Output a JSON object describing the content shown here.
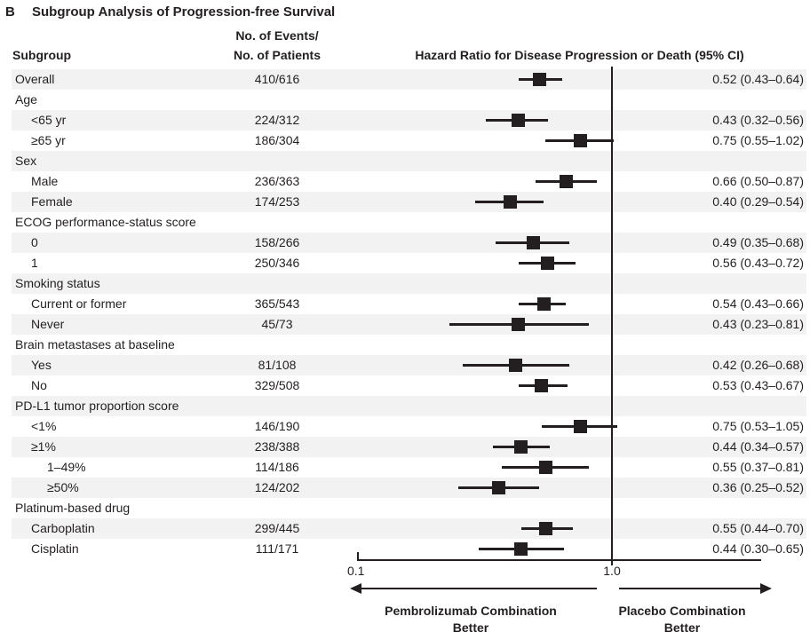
{
  "panel_label": "B",
  "title": "Subgroup Analysis of Progression-free Survival",
  "columns": {
    "subgroup": "Subgroup",
    "events_line1": "No. of Events/",
    "events_line2": "No. of Patients",
    "hr": "Hazard Ratio for Disease Progression or Death (95% CI)"
  },
  "axis": {
    "tick_left": "0.1",
    "tick_right": "1.0",
    "left_caption_line1": "Pembrolizumab Combination",
    "left_caption_line2": "Better",
    "right_caption_line1": "Placebo Combination",
    "right_caption_line2": "Better"
  },
  "colors": {
    "ink": "#231f20",
    "band": "#f2f2f2"
  },
  "chart_data": {
    "type": "forest",
    "title": "Subgroup Analysis of Progression-free Survival",
    "x_axis": {
      "scale": "log10",
      "tick_values": [
        0.1,
        1.0
      ],
      "reference_line": 1.0,
      "left_better_label": "Pembrolizumab Combination Better",
      "right_better_label": "Placebo Combination Better"
    },
    "rows": [
      {
        "label": "Overall",
        "indent": 0,
        "events": "410/616",
        "hr": 0.52,
        "lo": 0.43,
        "hi": 0.64,
        "hr_text": "0.52 (0.43–0.64)"
      },
      {
        "label": "Age",
        "indent": 0
      },
      {
        "label": "<65 yr",
        "indent": 1,
        "events": "224/312",
        "hr": 0.43,
        "lo": 0.32,
        "hi": 0.56,
        "hr_text": "0.43 (0.32–0.56)"
      },
      {
        "label": "≥65 yr",
        "indent": 1,
        "events": "186/304",
        "hr": 0.75,
        "lo": 0.55,
        "hi": 1.02,
        "hr_text": "0.75 (0.55–1.02)"
      },
      {
        "label": "Sex",
        "indent": 0
      },
      {
        "label": "Male",
        "indent": 1,
        "events": "236/363",
        "hr": 0.66,
        "lo": 0.5,
        "hi": 0.87,
        "hr_text": "0.66 (0.50–0.87)"
      },
      {
        "label": "Female",
        "indent": 1,
        "events": "174/253",
        "hr": 0.4,
        "lo": 0.29,
        "hi": 0.54,
        "hr_text": "0.40 (0.29–0.54)"
      },
      {
        "label": "ECOG performance-status score",
        "indent": 0
      },
      {
        "label": "0",
        "indent": 1,
        "events": "158/266",
        "hr": 0.49,
        "lo": 0.35,
        "hi": 0.68,
        "hr_text": "0.49 (0.35–0.68)"
      },
      {
        "label": "1",
        "indent": 1,
        "events": "250/346",
        "hr": 0.56,
        "lo": 0.43,
        "hi": 0.72,
        "hr_text": "0.56 (0.43–0.72)"
      },
      {
        "label": "Smoking status",
        "indent": 0
      },
      {
        "label": "Current or former",
        "indent": 1,
        "events": "365/543",
        "hr": 0.54,
        "lo": 0.43,
        "hi": 0.66,
        "hr_text": "0.54 (0.43–0.66)"
      },
      {
        "label": "Never",
        "indent": 1,
        "events": "45/73",
        "hr": 0.43,
        "lo": 0.23,
        "hi": 0.81,
        "hr_text": "0.43 (0.23–0.81)"
      },
      {
        "label": "Brain metastases at baseline",
        "indent": 0
      },
      {
        "label": "Yes",
        "indent": 1,
        "events": "81/108",
        "hr": 0.42,
        "lo": 0.26,
        "hi": 0.68,
        "hr_text": "0.42 (0.26–0.68)"
      },
      {
        "label": "No",
        "indent": 1,
        "events": "329/508",
        "hr": 0.53,
        "lo": 0.43,
        "hi": 0.67,
        "hr_text": "0.53 (0.43–0.67)"
      },
      {
        "label": "PD-L1 tumor proportion score",
        "indent": 0
      },
      {
        "label": "<1%",
        "indent": 1,
        "events": "146/190",
        "hr": 0.75,
        "lo": 0.53,
        "hi": 1.05,
        "hr_text": "0.75 (0.53–1.05)"
      },
      {
        "label": "≥1%",
        "indent": 1,
        "events": "238/388",
        "hr": 0.44,
        "lo": 0.34,
        "hi": 0.57,
        "hr_text": "0.44 (0.34–0.57)"
      },
      {
        "label": "1–49%",
        "indent": 2,
        "events": "114/186",
        "hr": 0.55,
        "lo": 0.37,
        "hi": 0.81,
        "hr_text": "0.55 (0.37–0.81)"
      },
      {
        "label": "≥50%",
        "indent": 2,
        "events": "124/202",
        "hr": 0.36,
        "lo": 0.25,
        "hi": 0.52,
        "hr_text": "0.36 (0.25–0.52)"
      },
      {
        "label": "Platinum-based drug",
        "indent": 0
      },
      {
        "label": "Carboplatin",
        "indent": 1,
        "events": "299/445",
        "hr": 0.55,
        "lo": 0.44,
        "hi": 0.7,
        "hr_text": "0.55 (0.44–0.70)"
      },
      {
        "label": "Cisplatin",
        "indent": 1,
        "events": "111/171",
        "hr": 0.44,
        "lo": 0.3,
        "hi": 0.65,
        "hr_text": "0.44 (0.30–0.65)"
      }
    ]
  }
}
